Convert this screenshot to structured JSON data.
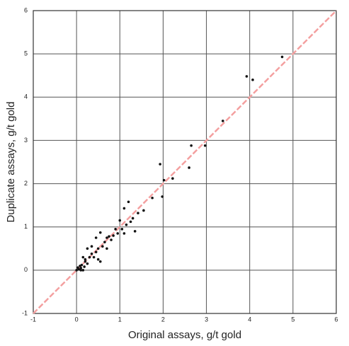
{
  "chart_data": {
    "type": "scatter",
    "x_label": "Original assays, g/t gold",
    "y_label": "Duplicate assays, g/t gold",
    "xlim": [
      -1,
      6
    ],
    "ylim": [
      -1,
      6
    ],
    "xticks": [
      -1,
      0,
      1,
      2,
      3,
      4,
      5,
      6
    ],
    "yticks": [
      -1,
      0,
      1,
      2,
      3,
      4,
      5,
      6
    ],
    "grid": true,
    "reference_line": {
      "x": [
        -1,
        6
      ],
      "y": [
        -1,
        6
      ],
      "color": "#f4a0a0"
    },
    "series": [
      {
        "color": "#111111",
        "x": [
          4.75,
          3.93,
          4.07,
          3.38,
          2.65,
          2.97,
          2.6,
          1.93,
          2.02,
          2.22,
          1.98,
          1.75,
          1.2,
          1.1,
          1.55,
          1.42,
          1.3,
          1.0,
          1.25,
          1.15,
          1.35,
          1.1,
          0.95,
          0.85,
          0.75,
          0.7,
          0.65,
          0.8,
          0.55,
          0.45,
          0.6,
          0.5,
          0.45,
          0.35,
          0.3,
          0.4,
          0.25,
          0.5,
          0.55,
          0.2,
          0.15,
          0.25,
          0.12,
          0.1,
          0.05,
          0.08,
          0.18,
          0.03,
          0.15,
          0.1,
          0.0,
          0.2,
          0.35,
          0.9,
          1.05,
          0.7
        ],
        "values": [
          4.93,
          4.48,
          4.4,
          3.45,
          2.88,
          2.88,
          2.37,
          2.45,
          2.08,
          2.12,
          1.7,
          1.67,
          1.58,
          1.43,
          1.38,
          1.32,
          1.2,
          1.15,
          1.12,
          1.05,
          0.9,
          0.85,
          0.85,
          0.8,
          0.78,
          0.75,
          0.65,
          0.7,
          0.87,
          0.75,
          0.55,
          0.5,
          0.42,
          0.55,
          0.3,
          0.3,
          0.5,
          0.25,
          0.2,
          0.2,
          0.3,
          0.15,
          0.12,
          0.05,
          0.02,
          0.1,
          0.08,
          0.06,
          0.0,
          0.0,
          0.0,
          0.25,
          0.38,
          0.95,
          0.95,
          0.5
        ]
      }
    ]
  }
}
